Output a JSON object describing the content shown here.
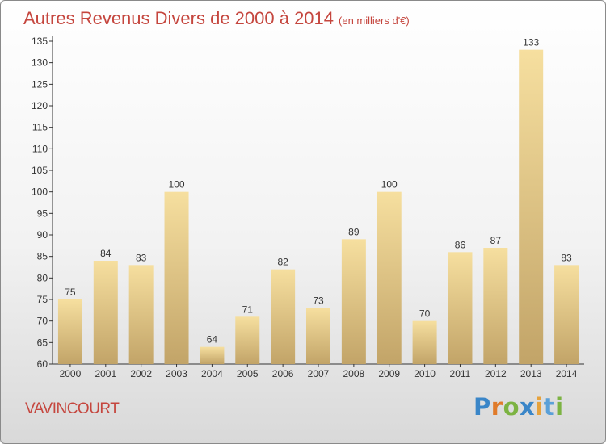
{
  "header": {
    "title": "Autres Revenus Divers de 2000 à 2014",
    "subtitle": "(en milliers d'€)"
  },
  "footer": {
    "city": "VAVINCOURT",
    "logo_text": "Proxiti"
  },
  "colors": {
    "title": "#c5463e",
    "bar_light": "#f5dd9b",
    "bar_dark": "#c2a468",
    "axis": "#333333"
  },
  "chart_data": {
    "type": "bar",
    "title": "Autres Revenus Divers de 2000 à 2014",
    "subtitle": "(en milliers d'€)",
    "categories": [
      "2000",
      "2001",
      "2002",
      "2003",
      "2004",
      "2005",
      "2006",
      "2007",
      "2008",
      "2009",
      "2010",
      "2011",
      "2012",
      "2013",
      "2014"
    ],
    "values": [
      75,
      84,
      83,
      100,
      64,
      71,
      82,
      73,
      89,
      100,
      70,
      86,
      87,
      133,
      83
    ],
    "ylim": [
      60,
      135
    ],
    "yticks": [
      60,
      65,
      70,
      75,
      80,
      85,
      90,
      95,
      100,
      105,
      110,
      115,
      120,
      125,
      130,
      135
    ],
    "grid": false,
    "legend": "none"
  }
}
